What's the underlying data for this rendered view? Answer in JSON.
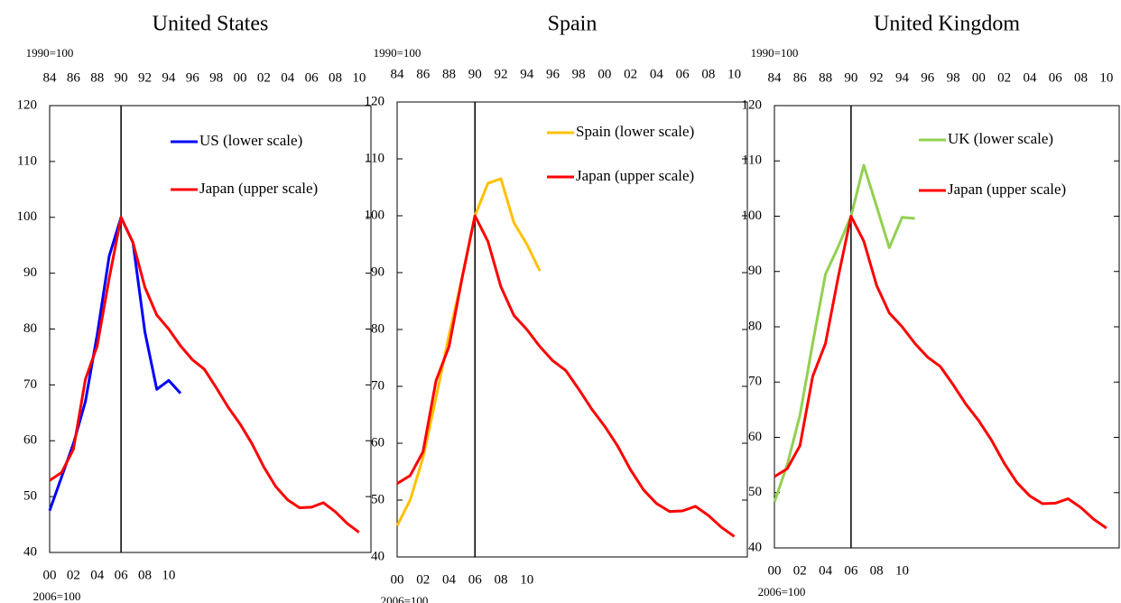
{
  "chart_data": [
    {
      "type": "line",
      "title": "United States",
      "x_top_label": "1990=100",
      "x_bottom_label": "2006=100",
      "x_top_ticks": [
        "84",
        "86",
        "88",
        "90",
        "92",
        "94",
        "96",
        "98",
        "00",
        "02",
        "04",
        "06",
        "08",
        "10"
      ],
      "x_bottom_ticks": [
        "00",
        "02",
        "04",
        "06",
        "08",
        "10"
      ],
      "ylim": [
        40,
        120
      ],
      "yticks": [
        40,
        50,
        60,
        70,
        80,
        90,
        100,
        110,
        120
      ],
      "grid": false,
      "legend": "upper right",
      "series": [
        {
          "name": "US (lower scale)",
          "color": "#0000ff",
          "axis": "lower",
          "values": [
            47.5,
            53.5,
            59.5,
            67,
            79,
            93,
            100,
            95.5,
            79.5,
            69.2,
            70.8,
            68.5
          ]
        },
        {
          "name": "Japan (upper scale)",
          "color": "#ff0000",
          "axis": "upper",
          "values": [
            52.9,
            54.3,
            58.5,
            71,
            77,
            89,
            100,
            95.5,
            87.5,
            82.5,
            80,
            77,
            74.5,
            72.8,
            69.5,
            66,
            63,
            59.5,
            55.3,
            51.8,
            49.4,
            48,
            48.1,
            48.9,
            47.3,
            45.2,
            43.6
          ]
        }
      ]
    },
    {
      "type": "line",
      "title": "Spain",
      "x_top_label": "1990=100",
      "x_bottom_label": "2006=100",
      "x_top_ticks": [
        "84",
        "86",
        "88",
        "90",
        "92",
        "94",
        "96",
        "98",
        "00",
        "02",
        "04",
        "06",
        "08",
        "10"
      ],
      "x_bottom_ticks": [
        "00",
        "02",
        "04",
        "06",
        "08",
        "10"
      ],
      "ylim": [
        40,
        120
      ],
      "yticks": [
        40,
        50,
        60,
        70,
        80,
        90,
        100,
        110,
        120
      ],
      "grid": false,
      "legend": "upper right",
      "series": [
        {
          "name": "Spain (lower scale)",
          "color": "#ffc000",
          "axis": "lower",
          "values": [
            45.5,
            50,
            57.5,
            68,
            79,
            89,
            100,
            105.7,
            106.5,
            98.8,
            95,
            90.3
          ]
        },
        {
          "name": "Japan (upper scale)",
          "color": "#ff0000",
          "axis": "upper",
          "values": [
            52.9,
            54.3,
            58.5,
            71,
            77,
            89,
            100,
            95.5,
            87.5,
            82.5,
            80,
            77,
            74.5,
            72.8,
            69.5,
            66,
            63,
            59.5,
            55.3,
            51.8,
            49.4,
            48,
            48.1,
            48.9,
            47.3,
            45.2,
            43.6
          ]
        }
      ]
    },
    {
      "type": "line",
      "title": "United Kingdom",
      "x_top_label": "1990=100",
      "x_bottom_label": "2006=100",
      "x_top_ticks": [
        "84",
        "86",
        "88",
        "90",
        "92",
        "94",
        "96",
        "98",
        "00",
        "02",
        "04",
        "06",
        "08",
        "10"
      ],
      "x_bottom_ticks": [
        "00",
        "02",
        "04",
        "06",
        "08",
        "10"
      ],
      "ylim": [
        40,
        120
      ],
      "yticks": [
        40,
        50,
        60,
        70,
        80,
        90,
        100,
        110,
        120
      ],
      "grid": false,
      "legend": "upper right",
      "series": [
        {
          "name": "UK (lower scale)",
          "color": "#92d050",
          "axis": "lower",
          "values": [
            48.3,
            55,
            64,
            77,
            89.5,
            94.5,
            100,
            109.2,
            101.8,
            94.3,
            99.8,
            99.6
          ]
        },
        {
          "name": "Japan (upper scale)",
          "color": "#ff0000",
          "axis": "upper",
          "values": [
            52.9,
            54.3,
            58.5,
            71,
            77,
            89,
            100,
            95.5,
            87.5,
            82.5,
            80,
            77,
            74.5,
            72.8,
            69.5,
            66,
            63,
            59.5,
            55.3,
            51.8,
            49.4,
            48,
            48.1,
            48.9,
            47.3,
            45.2,
            43.6
          ]
        }
      ]
    }
  ]
}
